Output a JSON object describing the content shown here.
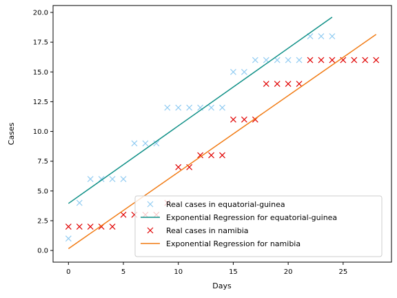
{
  "chart_data": {
    "type": "scatter",
    "title": "",
    "xlabel": "Days",
    "ylabel": "Cases",
    "xlim": [
      -1.4,
      29.4
    ],
    "ylim": [
      -0.98,
      20.58
    ],
    "xticks": [
      0,
      5,
      10,
      15,
      20,
      25
    ],
    "xtick_labels": [
      "0",
      "5",
      "10",
      "15",
      "20",
      "25"
    ],
    "yticks": [
      0,
      2.5,
      5,
      7.5,
      10,
      12.5,
      15,
      17.5,
      20
    ],
    "ytick_labels": [
      "0.0",
      "2.5",
      "5.0",
      "7.5",
      "10.0",
      "12.5",
      "15.0",
      "17.5",
      "20.0"
    ],
    "grid": false,
    "legend_position": "lower-right",
    "series": [
      {
        "name": "Real cases in equatorial-guinea",
        "kind": "markers",
        "marker": "x",
        "color": "#92CCF2",
        "x": [
          0,
          1,
          2,
          3,
          4,
          5,
          6,
          7,
          8,
          9,
          10,
          11,
          12,
          13,
          14,
          15,
          16,
          17,
          18,
          19,
          20,
          21,
          22,
          23,
          24
        ],
        "y": [
          1,
          4,
          6,
          6,
          6,
          6,
          9,
          9,
          9,
          12,
          12,
          12,
          12,
          12,
          12,
          15,
          15,
          16,
          16,
          16,
          16,
          16,
          18,
          18,
          18
        ]
      },
      {
        "name": "Exponential Regression for equatorial-guinea",
        "kind": "line",
        "color": "#0D8F86",
        "x": [
          0,
          24
        ],
        "y": [
          3.95,
          19.6
        ]
      },
      {
        "name": "Real cases in namibia",
        "kind": "markers",
        "marker": "x",
        "color": "#E00000",
        "x": [
          0,
          1,
          2,
          3,
          4,
          5,
          6,
          7,
          8,
          9,
          10,
          11,
          12,
          13,
          14,
          15,
          16,
          17,
          18,
          19,
          20,
          21,
          22,
          23,
          24,
          25,
          26,
          27,
          28
        ],
        "y": [
          2,
          2,
          2,
          2,
          2,
          3,
          3,
          3,
          3,
          4,
          7,
          7,
          8,
          8,
          8,
          11,
          11,
          11,
          14,
          14,
          14,
          14,
          16,
          16,
          16,
          16,
          16,
          16,
          16
        ]
      },
      {
        "name": "Exponential Regression for namibia",
        "kind": "line",
        "color": "#F17A12",
        "x": [
          0,
          28
        ],
        "y": [
          0.15,
          18.15
        ]
      }
    ]
  }
}
